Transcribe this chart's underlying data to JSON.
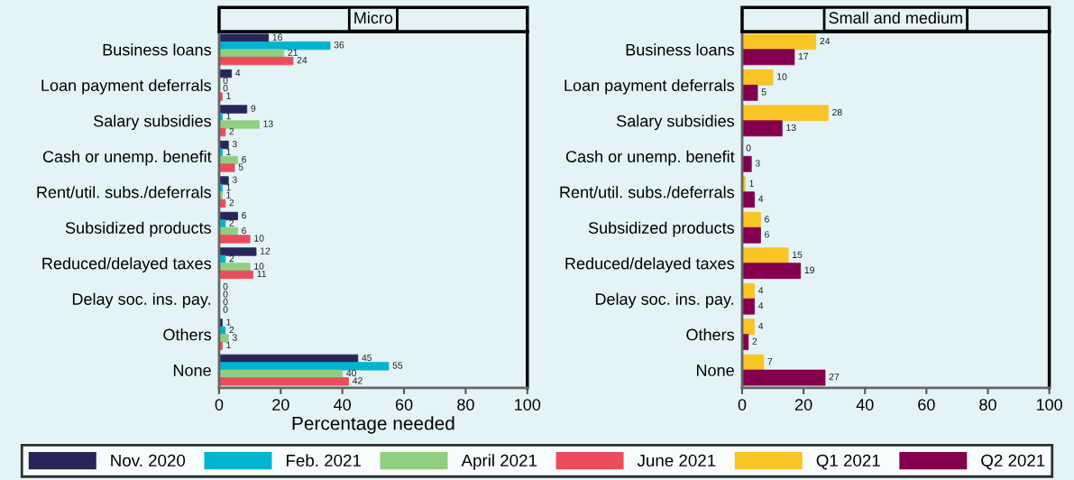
{
  "chart_data": [
    {
      "type": "bar",
      "orientation": "horizontal",
      "title": "Micro",
      "xlabel": "Percentage needed",
      "categories": [
        "Business loans",
        "Loan payment deferrals",
        "Salary subsidies",
        "Cash or unemp. benefit",
        "Rent/util. subs./deferrals",
        "Subsidized products",
        "Reduced/delayed taxes",
        "Delay soc. ins. pay.",
        "Others",
        "None"
      ],
      "series": [
        {
          "name": "Nov. 2020",
          "color": "#27255a",
          "values": [
            16,
            4,
            9,
            3,
            3,
            6,
            12,
            0,
            1,
            45
          ]
        },
        {
          "name": "Feb. 2021",
          "color": "#00b4cf",
          "values": [
            36,
            0,
            1,
            1,
            1,
            2,
            2,
            0,
            2,
            55
          ]
        },
        {
          "name": "April 2021",
          "color": "#90cf82",
          "values": [
            21,
            0,
            13,
            6,
            1,
            6,
            10,
            0,
            3,
            40
          ]
        },
        {
          "name": "June 2021",
          "color": "#ea4c5e",
          "values": [
            24,
            1,
            2,
            5,
            2,
            10,
            11,
            0,
            1,
            42
          ]
        }
      ],
      "xlim": [
        0,
        100
      ],
      "xticks": [
        0,
        20,
        40,
        60,
        80,
        100
      ],
      "data_labels": true,
      "grid": false,
      "legend": "bottom"
    },
    {
      "type": "bar",
      "orientation": "horizontal",
      "title": "Small and medium",
      "categories": [
        "Business loans",
        "Loan payment deferrals",
        "Salary subsidies",
        "Cash or unemp. benefit",
        "Rent/util. subs./deferrals",
        "Subsidized products",
        "Reduced/delayed taxes",
        "Delay soc. ins. pay.",
        "Others",
        "None"
      ],
      "series": [
        {
          "name": "Q1 2021",
          "color": "#f9c425",
          "values": [
            24,
            10,
            28,
            0,
            1,
            6,
            15,
            4,
            4,
            7
          ]
        },
        {
          "name": "Q2 2021",
          "color": "#84004e",
          "values": [
            17,
            5,
            13,
            3,
            4,
            6,
            19,
            4,
            2,
            27
          ]
        }
      ],
      "xlim": [
        0,
        100
      ],
      "xticks": [
        0,
        20,
        40,
        60,
        80,
        100
      ],
      "data_labels": true,
      "grid": false,
      "legend": "bottom"
    }
  ]
}
